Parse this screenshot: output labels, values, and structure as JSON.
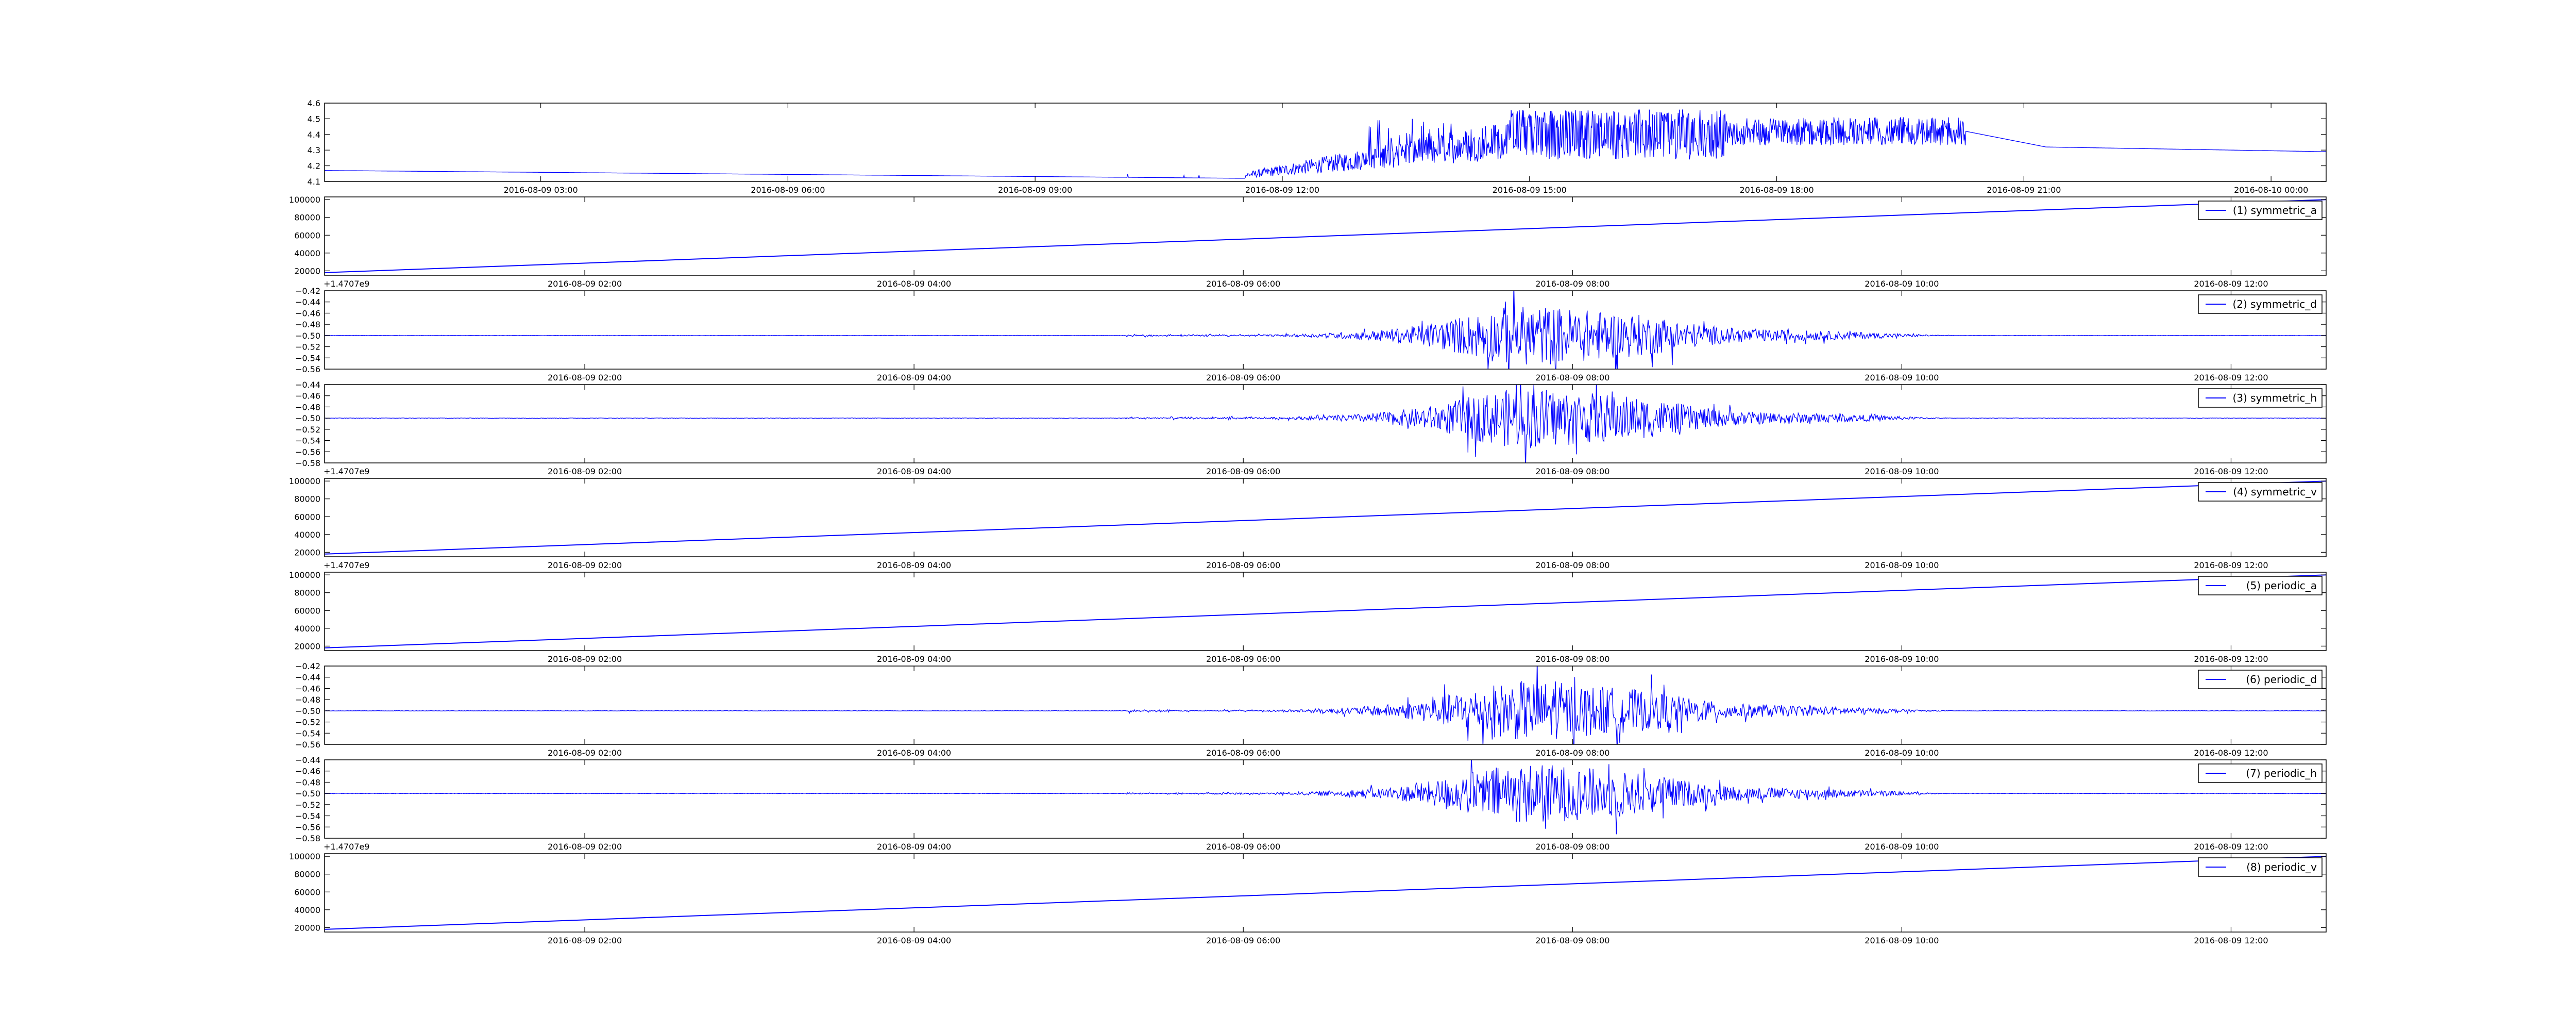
{
  "chart_data": [
    {
      "type": "line",
      "series": [],
      "signal": "battery_profile",
      "ylim": [
        4.1,
        4.6
      ],
      "yticks": [
        "4.1",
        "4.2",
        "4.3",
        "4.4",
        "4.5",
        "4.6"
      ],
      "xticks": [
        "2016-08-09 03:00",
        "2016-08-09 06:00",
        "2016-08-09 09:00",
        "2016-08-09 12:00",
        "2016-08-09 15:00",
        "2016-08-09 18:00",
        "2016-08-09 21:00",
        "2016-08-10 00:00"
      ],
      "offset_text": "",
      "legend_label": "",
      "legend_style": "",
      "line_color": "#0000ff"
    },
    {
      "type": "line",
      "series": [
        {
          "name": "(1) symmetric_a"
        }
      ],
      "signal": "ramp",
      "values_start_end": [
        18000,
        100000
      ],
      "ylim": [
        15000,
        103000
      ],
      "yticks": [
        "20000",
        "40000",
        "60000",
        "80000",
        "100000"
      ],
      "xticks": [
        "2016-08-09 02:00",
        "2016-08-09 04:00",
        "2016-08-09 06:00",
        "2016-08-09 08:00",
        "2016-08-09 10:00",
        "2016-08-09 12:00"
      ],
      "offset_text": "+1.4707e9",
      "legend_label": "(1) symmetric_a",
      "legend_style": "line",
      "line_color": "#0000ff"
    },
    {
      "type": "line",
      "series": [
        {
          "name": "(2) symmetric_d"
        }
      ],
      "signal": "oscillation",
      "baseline": -0.5,
      "ylim": [
        -0.56,
        -0.42
      ],
      "yticks": [
        "−0.56",
        "−0.54",
        "−0.52",
        "−0.50",
        "−0.48",
        "−0.46",
        "−0.44",
        "−0.42"
      ],
      "xticks": [
        "2016-08-09 02:00",
        "2016-08-09 04:00",
        "2016-08-09 06:00",
        "2016-08-09 08:00",
        "2016-08-09 10:00",
        "2016-08-09 12:00"
      ],
      "offset_text": "",
      "legend_label": "(2) symmetric_d",
      "legend_style": "line",
      "line_color": "#0000ff"
    },
    {
      "type": "line",
      "series": [
        {
          "name": "(3) symmetric_h"
        }
      ],
      "signal": "oscillation",
      "baseline": -0.5,
      "ylim": [
        -0.58,
        -0.44
      ],
      "yticks": [
        "−0.58",
        "−0.56",
        "−0.54",
        "−0.52",
        "−0.50",
        "−0.48",
        "−0.46",
        "−0.44"
      ],
      "xticks": [
        "2016-08-09 02:00",
        "2016-08-09 04:00",
        "2016-08-09 06:00",
        "2016-08-09 08:00",
        "2016-08-09 10:00",
        "2016-08-09 12:00"
      ],
      "offset_text": "+1.4707e9",
      "legend_label": "(3) symmetric_h",
      "legend_style": "line",
      "line_color": "#0000ff"
    },
    {
      "type": "line",
      "series": [
        {
          "name": "(4) symmetric_v"
        }
      ],
      "signal": "ramp",
      "values_start_end": [
        18000,
        100000
      ],
      "ylim": [
        15000,
        103000
      ],
      "yticks": [
        "20000",
        "40000",
        "60000",
        "80000",
        "100000"
      ],
      "xticks": [
        "2016-08-09 02:00",
        "2016-08-09 04:00",
        "2016-08-09 06:00",
        "2016-08-09 08:00",
        "2016-08-09 10:00",
        "2016-08-09 12:00"
      ],
      "offset_text": "+1.4707e9",
      "legend_label": "(4) symmetric_v",
      "legend_style": "line",
      "line_color": "#0000ff"
    },
    {
      "type": "line",
      "series": [
        {
          "name": "(5) periodic_a"
        }
      ],
      "signal": "ramp",
      "values_start_end": [
        18000,
        100000
      ],
      "ylim": [
        15000,
        103000
      ],
      "yticks": [
        "20000",
        "40000",
        "60000",
        "80000",
        "100000"
      ],
      "xticks": [
        "2016-08-09 02:00",
        "2016-08-09 04:00",
        "2016-08-09 06:00",
        "2016-08-09 08:00",
        "2016-08-09 10:00",
        "2016-08-09 12:00"
      ],
      "offset_text": "",
      "legend_label": "(5) periodic_a",
      "legend_style": "line",
      "line_color": "#0000ff"
    },
    {
      "type": "line",
      "series": [
        {
          "name": "(6) periodic_d"
        }
      ],
      "signal": "oscillation",
      "baseline": -0.5,
      "ylim": [
        -0.56,
        -0.42
      ],
      "yticks": [
        "−0.56",
        "−0.54",
        "−0.52",
        "−0.50",
        "−0.48",
        "−0.46",
        "−0.44",
        "−0.42"
      ],
      "xticks": [
        "2016-08-09 02:00",
        "2016-08-09 04:00",
        "2016-08-09 06:00",
        "2016-08-09 08:00",
        "2016-08-09 10:00",
        "2016-08-09 12:00"
      ],
      "offset_text": "",
      "legend_label": "(6) periodic_d",
      "legend_style": "line",
      "line_color": "#0000ff"
    },
    {
      "type": "line",
      "series": [
        {
          "name": "(7) periodic_h"
        }
      ],
      "signal": "oscillation",
      "baseline": -0.5,
      "ylim": [
        -0.58,
        -0.44
      ],
      "yticks": [
        "−0.58",
        "−0.56",
        "−0.54",
        "−0.52",
        "−0.50",
        "−0.48",
        "−0.46",
        "−0.44"
      ],
      "xticks": [
        "2016-08-09 02:00",
        "2016-08-09 04:00",
        "2016-08-09 06:00",
        "2016-08-09 08:00",
        "2016-08-09 10:00",
        "2016-08-09 12:00"
      ],
      "offset_text": "+1.4707e9",
      "legend_label": "(7) periodic_h",
      "legend_style": "line",
      "line_color": "#0000ff"
    },
    {
      "type": "line",
      "series": [
        {
          "name": "(8) periodic_v"
        }
      ],
      "signal": "ramp",
      "values_start_end": [
        18000,
        100000
      ],
      "ylim": [
        15000,
        103000
      ],
      "yticks": [
        "20000",
        "40000",
        "60000",
        "80000",
        "100000"
      ],
      "xticks": [
        "2016-08-09 02:00",
        "2016-08-09 04:00",
        "2016-08-09 06:00",
        "2016-08-09 08:00",
        "2016-08-09 10:00",
        "2016-08-09 12:00"
      ],
      "offset_text": "",
      "legend_label": "(8) periodic_v",
      "legend_style": "line",
      "line_color": "#0000ff"
    }
  ]
}
